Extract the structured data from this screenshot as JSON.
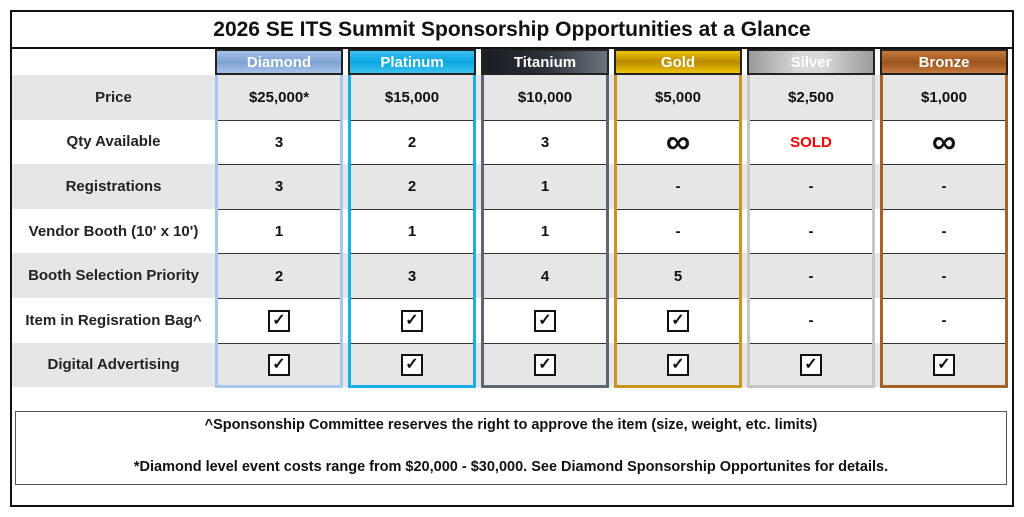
{
  "title": "2026 SE ITS Summit Sponsorship Opportunities at a Glance",
  "row_labels": [
    "Price",
    "Qty Available",
    "Registrations",
    "Vendor Booth (10' x 10')",
    "Booth Selection Priority",
    "Item in Regisration Bag^",
    "Digital Advertising"
  ],
  "tiers": [
    {
      "name": "Diamond",
      "border": "#a8c6f2",
      "head": "linear-gradient(#a7c2e8,#7ea2d2 50%,#a7c2e8)",
      "values": [
        "$25,000*",
        "3",
        "3",
        "1",
        "2",
        "check",
        "check"
      ]
    },
    {
      "name": "Platinum",
      "border": "#17b1e8",
      "head": "linear-gradient(#3cc4f2,#0aa6e0 50%,#3cc4f2)",
      "values": [
        "$15,000",
        "2",
        "2",
        "1",
        "3",
        "check",
        "check"
      ]
    },
    {
      "name": "Titanium",
      "border": "#5d6671",
      "head": "linear-gradient(90deg,#1a1d22,#2c3138 50%,#6b737c)",
      "values": [
        "$10,000",
        "3",
        "1",
        "1",
        "4",
        "check",
        "check"
      ]
    },
    {
      "name": "Gold",
      "border": "#c9961e",
      "head": "linear-gradient(#f0c400,#b88a00 50%,#f0c400)",
      "values": [
        "$5,000",
        "∞",
        "-",
        "-",
        "5",
        "check",
        "check"
      ]
    },
    {
      "name": "Silver",
      "border": "#c8c8c8",
      "head": "linear-gradient(90deg,#9a9a9a,#d8d8d8 40%,#d8d8d8 60%,#9a9a9a)",
      "values": [
        "$2,500",
        "SOLD",
        "-",
        "-",
        "-",
        "-",
        "check"
      ]
    },
    {
      "name": "Bronze",
      "border": "#a4622a",
      "head": "linear-gradient(#c57a3a,#9c5520 50%,#c57a3a)",
      "values": [
        "$1,000",
        "∞",
        "-",
        "-",
        "-",
        "-",
        "check"
      ]
    }
  ],
  "colors": {
    "sold": "#ff0000",
    "stripe": "#e6e6e6"
  },
  "notes": [
    "^Sponsonship Committee reserves the right to approve the item (size, weight, etc. limits)",
    "*Diamond level event costs range from $20,000 - $30,000.  See Diamond Sponsorship Opportunites for details."
  ]
}
